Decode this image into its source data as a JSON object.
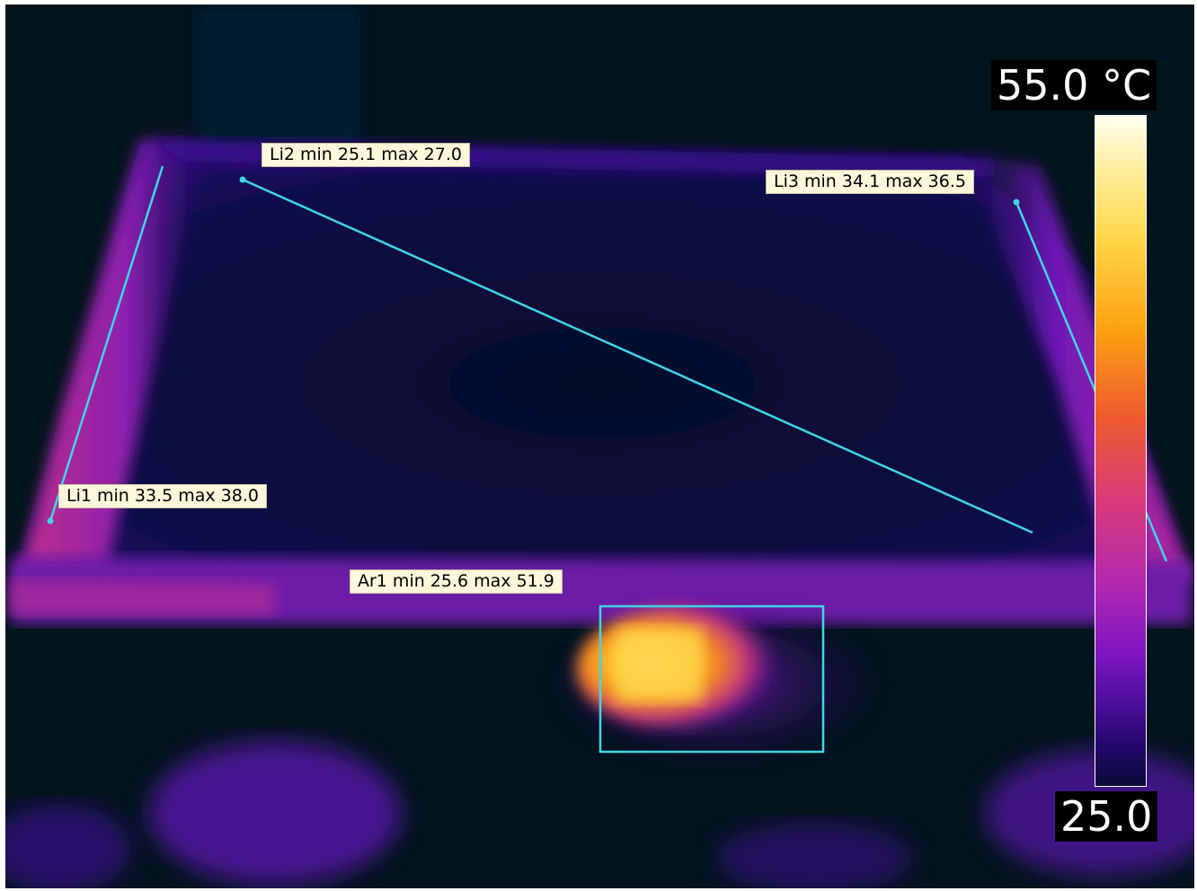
{
  "measurements": {
    "li1": {
      "label": "Li1 min 33.5 max 38.0"
    },
    "li2": {
      "label": "Li2 min 25.1 max 27.0"
    },
    "li3": {
      "label": "Li3 min 34.1 max 36.5"
    },
    "ar1": {
      "label": "Ar1 min 25.6 max 51.9"
    }
  },
  "scale": {
    "max_label": "55.0 °C",
    "min_label": "25.0"
  },
  "colors": {
    "background": "#02141c",
    "tool_line": "#3fd6e6",
    "label_bg": "#fdf7dc",
    "hot": "#ffd84a",
    "warm": "#d73a7c",
    "cool": "#3a0c8c"
  }
}
